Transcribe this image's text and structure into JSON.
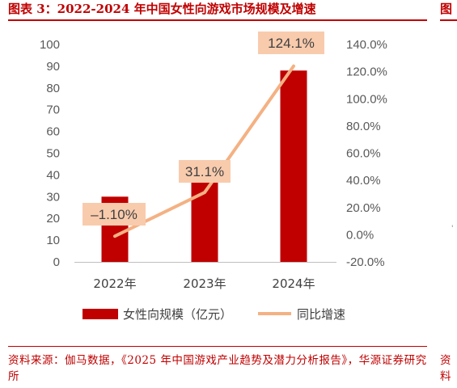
{
  "figure": {
    "title": "图表 3：2022-2024 年中国女性向游戏市场规模及增速",
    "next_title_fragment": "图",
    "source": "资料来源：伽马数据，《2025 年中国游戏产业趋势及潜力分析报告》，华源证券研究所",
    "next_source_fragment": "资料",
    "next_fragment_char": "'"
  },
  "colors": {
    "bar": "#c00000",
    "line": "#f4b183",
    "label_box": "#f8cbad",
    "accent": "#c00000"
  },
  "chart_data": {
    "type": "bar",
    "categories": [
      "2022年",
      "2023年",
      "2024年"
    ],
    "series": [
      {
        "name": "女性向规模（亿元）",
        "type": "bar",
        "axis": "left",
        "values": [
          30,
          37,
          88
        ]
      },
      {
        "name": "同比增速",
        "type": "line",
        "axis": "right",
        "values": [
          -1.1,
          31.1,
          124.1
        ]
      }
    ],
    "data_labels": [
      "-1.10%",
      "31.1%",
      "124.1%"
    ],
    "y_left": {
      "min": 0,
      "max": 100,
      "step": 10,
      "ticks": [
        "0",
        "10",
        "20",
        "30",
        "40",
        "50",
        "60",
        "70",
        "80",
        "90",
        "100"
      ]
    },
    "y_right": {
      "min": -20,
      "max": 140,
      "step": 20,
      "ticks": [
        "-20.0%",
        "0.0%",
        "20.0%",
        "40.0%",
        "60.0%",
        "80.0%",
        "100.0%",
        "120.0%",
        "140.0%"
      ]
    },
    "legend": {
      "position": "bottom",
      "items": [
        "女性向规模（亿元）",
        "同比增速"
      ]
    },
    "grid": false
  }
}
